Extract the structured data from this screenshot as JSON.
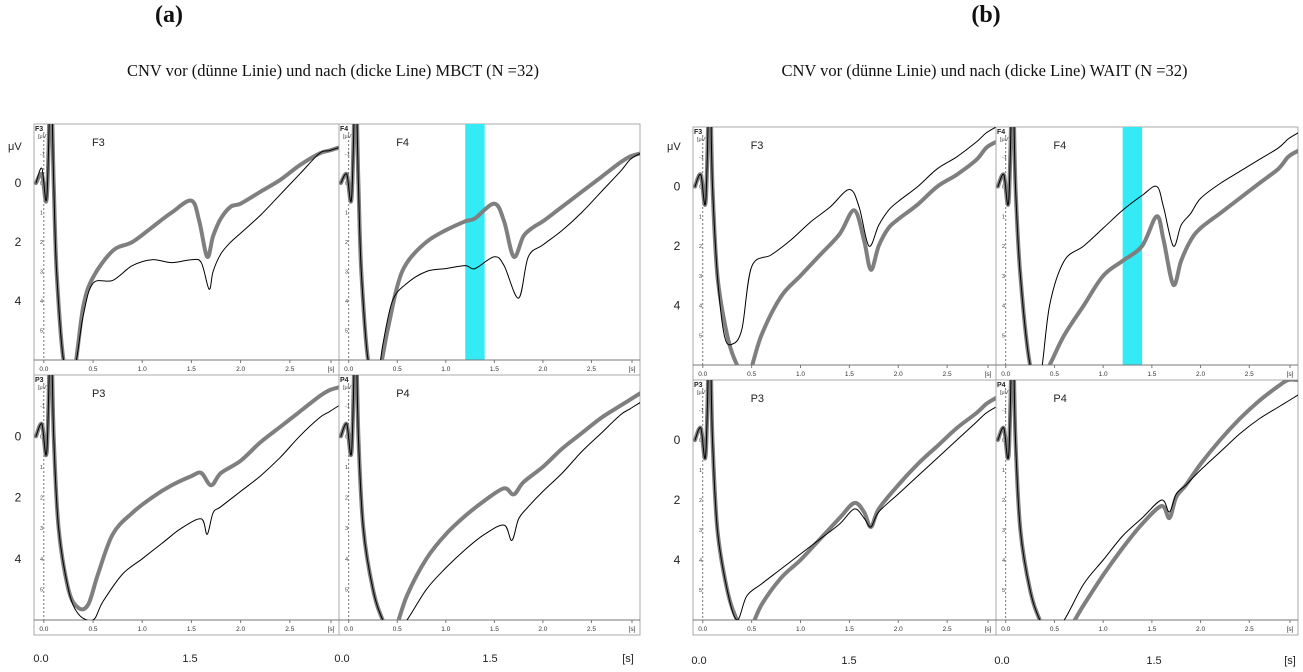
{
  "figure": {
    "panels": [
      {
        "id": "a",
        "letter": "(a)",
        "title": "CNV vor (dünne Linie) und nach (dicke Line) MBCT (N =32)",
        "unit_label": "μV",
        "y_outer_ticks": [
          "0",
          "2",
          "4",
          "0",
          "2",
          "4"
        ],
        "x_outer_ticks": [
          "0.0",
          "1.5",
          "0.0",
          "1.5",
          "[s]"
        ]
      },
      {
        "id": "b",
        "letter": "(b)",
        "title": "CNV vor (dünne Linie) und nach (dicke Line) WAIT (N =32)",
        "unit_label": "μV",
        "y_outer_ticks": [
          "0",
          "2",
          "4",
          "0",
          "2",
          "4"
        ],
        "x_outer_ticks": [
          "0.0",
          "1.5",
          "0.0",
          "1.5",
          "[s]"
        ]
      }
    ],
    "inner": {
      "corner_unit": "[μV]",
      "y_ticks": [
        "-1",
        "0",
        "1",
        "2",
        "3",
        "4",
        "5"
      ],
      "x_ticks": [
        "0.0",
        "0.5",
        "1.0",
        "1.5",
        "2.0",
        "2.5",
        "[s]"
      ]
    },
    "colors": {
      "thick": "#7f7f7f",
      "thin": "#000000",
      "highlight": "#33eaf5",
      "frame": "#a8a8a8"
    }
  },
  "chart_data": [
    {
      "type": "line",
      "panel": "a",
      "channel": "F3",
      "xlim": [
        -0.1,
        3.0
      ],
      "ylim": [
        6,
        -2
      ],
      "highlight": null,
      "series": [
        {
          "style": "thin",
          "x": [
            -0.08,
            -0.02,
            0.03,
            0.07,
            0.1,
            0.13,
            0.2,
            0.3,
            0.4,
            0.5,
            0.7,
            0.9,
            1.1,
            1.3,
            1.5,
            1.6,
            1.68,
            1.72,
            1.8,
            1.9,
            2.0,
            2.2,
            2.4,
            2.6,
            2.8,
            2.9,
            3.0
          ],
          "y": [
            0.0,
            -0.5,
            0.5,
            -3.5,
            0.0,
            3.0,
            6.0,
            6.5,
            4.5,
            3.4,
            3.3,
            2.8,
            2.6,
            2.7,
            2.6,
            2.7,
            3.6,
            3.0,
            2.4,
            2.0,
            1.7,
            1.1,
            0.4,
            -0.3,
            -1.0,
            -1.1,
            -1.2
          ]
        },
        {
          "style": "thick",
          "x": [
            -0.08,
            -0.02,
            0.03,
            0.07,
            0.1,
            0.13,
            0.2,
            0.3,
            0.4,
            0.5,
            0.7,
            0.9,
            1.1,
            1.3,
            1.5,
            1.58,
            1.66,
            1.72,
            1.8,
            1.9,
            2.0,
            2.2,
            2.4,
            2.6,
            2.8,
            2.9,
            3.0
          ],
          "y": [
            0.0,
            -0.3,
            0.5,
            -3.5,
            0.0,
            3.0,
            6.0,
            6.5,
            4.2,
            3.2,
            2.3,
            2.0,
            1.5,
            1.0,
            0.6,
            1.3,
            2.5,
            1.8,
            1.2,
            0.8,
            0.7,
            0.3,
            -0.1,
            -0.6,
            -1.0,
            -1.1,
            -1.2
          ]
        }
      ]
    },
    {
      "type": "line",
      "panel": "a",
      "channel": "F4",
      "xlim": [
        -0.1,
        3.0
      ],
      "ylim": [
        6,
        -2
      ],
      "highlight": [
        1.2,
        1.4
      ],
      "series": [
        {
          "style": "thin",
          "x": [
            -0.08,
            -0.02,
            0.03,
            0.07,
            0.1,
            0.13,
            0.2,
            0.3,
            0.35,
            0.45,
            0.6,
            0.8,
            1.0,
            1.2,
            1.3,
            1.5,
            1.6,
            1.75,
            1.85,
            2.0,
            2.2,
            2.4,
            2.6,
            2.8,
            2.9,
            3.0
          ],
          "y": [
            0.0,
            -0.3,
            0.5,
            -3.5,
            0.0,
            3.0,
            6.0,
            6.5,
            5.5,
            4.0,
            3.4,
            3.0,
            2.9,
            2.8,
            2.9,
            2.5,
            2.8,
            3.9,
            2.5,
            2.1,
            1.6,
            1.0,
            0.3,
            -0.4,
            -0.8,
            -1.0
          ]
        },
        {
          "style": "thick",
          "x": [
            -0.08,
            -0.02,
            0.03,
            0.07,
            0.1,
            0.13,
            0.2,
            0.3,
            0.4,
            0.5,
            0.6,
            0.8,
            1.0,
            1.2,
            1.3,
            1.5,
            1.6,
            1.7,
            1.8,
            1.9,
            2.0,
            2.2,
            2.4,
            2.6,
            2.8,
            2.9,
            3.0
          ],
          "y": [
            0.0,
            -0.3,
            0.5,
            -3.5,
            0.0,
            3.0,
            6.0,
            6.5,
            5.0,
            3.5,
            2.7,
            2.0,
            1.6,
            1.3,
            1.2,
            0.7,
            1.3,
            2.5,
            1.8,
            1.5,
            1.3,
            0.8,
            0.3,
            -0.2,
            -0.7,
            -0.9,
            -1.0
          ]
        }
      ]
    },
    {
      "type": "line",
      "panel": "a",
      "channel": "P3",
      "xlim": [
        -0.1,
        3.0
      ],
      "ylim": [
        6,
        -2
      ],
      "highlight": null,
      "series": [
        {
          "style": "thin",
          "x": [
            -0.08,
            -0.02,
            0.03,
            0.07,
            0.1,
            0.15,
            0.25,
            0.35,
            0.5,
            0.6,
            0.8,
            1.0,
            1.2,
            1.4,
            1.6,
            1.66,
            1.72,
            1.8,
            2.0,
            2.2,
            2.4,
            2.6,
            2.8,
            2.9,
            3.0
          ],
          "y": [
            0.0,
            -0.4,
            0.5,
            -3.5,
            0.0,
            3.0,
            5.0,
            5.8,
            6.0,
            5.4,
            4.5,
            4.0,
            3.5,
            3.0,
            2.7,
            3.2,
            2.5,
            2.3,
            1.8,
            1.3,
            0.7,
            0.0,
            -0.6,
            -0.8,
            -1.0
          ]
        },
        {
          "style": "thick",
          "x": [
            -0.08,
            -0.02,
            0.03,
            0.07,
            0.1,
            0.15,
            0.25,
            0.35,
            0.45,
            0.55,
            0.7,
            0.9,
            1.1,
            1.3,
            1.5,
            1.6,
            1.7,
            1.8,
            2.0,
            2.2,
            2.4,
            2.6,
            2.8,
            2.9,
            3.0
          ],
          "y": [
            0.0,
            -0.4,
            0.5,
            -3.5,
            0.0,
            3.0,
            5.0,
            5.6,
            5.5,
            4.5,
            3.2,
            2.5,
            2.0,
            1.6,
            1.3,
            1.2,
            1.6,
            1.2,
            0.8,
            0.2,
            -0.3,
            -0.8,
            -1.3,
            -1.5,
            -1.6
          ]
        }
      ]
    },
    {
      "type": "line",
      "panel": "a",
      "channel": "P4",
      "xlim": [
        -0.1,
        3.0
      ],
      "ylim": [
        6,
        -2
      ],
      "highlight": null,
      "series": [
        {
          "style": "thin",
          "x": [
            -0.08,
            -0.02,
            0.03,
            0.07,
            0.1,
            0.15,
            0.25,
            0.35,
            0.45,
            0.6,
            0.8,
            1.0,
            1.2,
            1.4,
            1.6,
            1.68,
            1.75,
            1.85,
            2.0,
            2.2,
            2.4,
            2.6,
            2.8,
            2.9,
            3.0
          ],
          "y": [
            0.0,
            -0.4,
            0.5,
            -3.5,
            0.0,
            3.0,
            5.0,
            6.0,
            6.5,
            6.0,
            5.0,
            4.3,
            3.7,
            3.2,
            2.9,
            3.4,
            2.7,
            2.3,
            1.8,
            1.2,
            0.5,
            -0.1,
            -0.7,
            -0.9,
            -1.1
          ]
        },
        {
          "style": "thick",
          "x": [
            -0.08,
            -0.02,
            0.03,
            0.07,
            0.1,
            0.15,
            0.25,
            0.35,
            0.45,
            0.6,
            0.8,
            1.0,
            1.2,
            1.4,
            1.6,
            1.7,
            1.8,
            2.0,
            2.2,
            2.4,
            2.6,
            2.8,
            2.9,
            3.0
          ],
          "y": [
            0.0,
            -0.4,
            0.5,
            -3.5,
            0.0,
            3.0,
            5.0,
            6.0,
            6.5,
            5.2,
            4.0,
            3.2,
            2.6,
            2.1,
            1.7,
            1.9,
            1.5,
            1.0,
            0.4,
            -0.1,
            -0.6,
            -1.0,
            -1.2,
            -1.4
          ]
        }
      ]
    },
    {
      "type": "line",
      "panel": "b",
      "channel": "F3",
      "xlim": [
        -0.1,
        3.0
      ],
      "ylim": [
        6,
        -2
      ],
      "highlight": null,
      "series": [
        {
          "style": "thin",
          "x": [
            -0.08,
            -0.02,
            0.03,
            0.07,
            0.1,
            0.15,
            0.22,
            0.3,
            0.4,
            0.5,
            0.7,
            0.9,
            1.1,
            1.3,
            1.5,
            1.6,
            1.7,
            1.8,
            1.9,
            2.0,
            2.2,
            2.4,
            2.6,
            2.8,
            2.9,
            3.0
          ],
          "y": [
            0.0,
            -0.4,
            0.5,
            -3.5,
            0.0,
            3.0,
            5.0,
            5.3,
            4.8,
            2.7,
            2.3,
            1.8,
            1.2,
            0.7,
            0.1,
            0.7,
            2.0,
            1.3,
            0.8,
            0.5,
            0.0,
            -0.6,
            -1.0,
            -1.5,
            -1.8,
            -2.0
          ]
        },
        {
          "style": "thick",
          "x": [
            -0.08,
            -0.02,
            0.03,
            0.07,
            0.1,
            0.15,
            0.25,
            0.35,
            0.45,
            0.6,
            0.8,
            1.0,
            1.2,
            1.4,
            1.55,
            1.65,
            1.72,
            1.8,
            1.9,
            2.0,
            2.2,
            2.4,
            2.6,
            2.8,
            2.9,
            3.0
          ],
          "y": [
            0.0,
            -0.4,
            0.5,
            -3.5,
            0.0,
            3.0,
            5.0,
            6.0,
            6.5,
            5.0,
            3.7,
            3.0,
            2.3,
            1.6,
            0.8,
            1.8,
            2.8,
            2.0,
            1.4,
            1.1,
            0.6,
            0.0,
            -0.4,
            -0.9,
            -1.3,
            -1.5
          ]
        }
      ]
    },
    {
      "type": "line",
      "panel": "b",
      "channel": "F4",
      "xlim": [
        -0.1,
        3.0
      ],
      "ylim": [
        6,
        -2
      ],
      "highlight": [
        1.2,
        1.4
      ],
      "series": [
        {
          "style": "thin",
          "x": [
            -0.08,
            -0.02,
            0.03,
            0.07,
            0.1,
            0.15,
            0.25,
            0.35,
            0.45,
            0.6,
            0.8,
            1.0,
            1.2,
            1.4,
            1.55,
            1.62,
            1.72,
            1.8,
            1.9,
            2.0,
            2.2,
            2.4,
            2.6,
            2.8,
            2.9,
            3.0
          ],
          "y": [
            0.0,
            -0.4,
            0.5,
            -3.5,
            0.0,
            3.0,
            6.0,
            6.5,
            4.0,
            2.5,
            2.0,
            1.4,
            0.8,
            0.3,
            0.0,
            0.7,
            2.0,
            1.3,
            0.9,
            0.4,
            -0.1,
            -0.5,
            -0.9,
            -1.3,
            -1.6,
            -1.8
          ]
        },
        {
          "style": "thick",
          "x": [
            -0.08,
            -0.02,
            0.03,
            0.07,
            0.1,
            0.15,
            0.25,
            0.35,
            0.45,
            0.6,
            0.8,
            1.0,
            1.2,
            1.4,
            1.55,
            1.62,
            1.72,
            1.8,
            1.9,
            2.0,
            2.2,
            2.4,
            2.6,
            2.8,
            2.9,
            3.0
          ],
          "y": [
            0.0,
            -0.4,
            0.5,
            -3.5,
            0.0,
            3.0,
            6.0,
            6.5,
            6.0,
            5.0,
            4.0,
            3.0,
            2.5,
            2.0,
            1.0,
            1.8,
            3.3,
            2.5,
            1.8,
            1.4,
            0.9,
            0.4,
            -0.1,
            -0.6,
            -1.0,
            -1.2
          ]
        }
      ]
    },
    {
      "type": "line",
      "panel": "b",
      "channel": "P3",
      "xlim": [
        -0.1,
        3.0
      ],
      "ylim": [
        6,
        -2
      ],
      "highlight": null,
      "series": [
        {
          "style": "thin",
          "x": [
            -0.08,
            -0.02,
            0.03,
            0.07,
            0.1,
            0.15,
            0.25,
            0.35,
            0.45,
            0.6,
            0.8,
            1.0,
            1.2,
            1.4,
            1.55,
            1.65,
            1.72,
            1.8,
            2.0,
            2.2,
            2.4,
            2.6,
            2.8,
            2.9,
            3.0
          ],
          "y": [
            0.0,
            -0.4,
            0.5,
            -3.5,
            0.0,
            3.0,
            5.0,
            6.0,
            5.2,
            4.8,
            4.3,
            3.8,
            3.3,
            2.8,
            2.3,
            2.6,
            2.9,
            2.4,
            1.8,
            1.2,
            0.6,
            0.0,
            -0.6,
            -0.9,
            -1.1
          ]
        },
        {
          "style": "thick",
          "x": [
            -0.08,
            -0.02,
            0.03,
            0.07,
            0.1,
            0.15,
            0.25,
            0.35,
            0.45,
            0.6,
            0.8,
            1.0,
            1.2,
            1.4,
            1.55,
            1.65,
            1.72,
            1.8,
            2.0,
            2.2,
            2.4,
            2.6,
            2.8,
            2.9,
            3.0
          ],
          "y": [
            0.0,
            -0.4,
            0.5,
            -3.5,
            0.0,
            3.0,
            5.0,
            6.0,
            6.5,
            5.5,
            4.6,
            4.0,
            3.3,
            2.6,
            2.1,
            2.4,
            2.9,
            2.3,
            1.5,
            0.8,
            0.2,
            -0.4,
            -0.9,
            -1.2,
            -1.4
          ]
        }
      ]
    },
    {
      "type": "line",
      "panel": "b",
      "channel": "P4",
      "xlim": [
        -0.1,
        3.0
      ],
      "ylim": [
        6,
        -2
      ],
      "highlight": null,
      "series": [
        {
          "style": "thin",
          "x": [
            -0.08,
            -0.02,
            0.03,
            0.07,
            0.1,
            0.15,
            0.25,
            0.35,
            0.45,
            0.6,
            0.8,
            1.0,
            1.2,
            1.4,
            1.6,
            1.68,
            1.75,
            1.85,
            2.0,
            2.2,
            2.4,
            2.6,
            2.8,
            2.9,
            3.0
          ],
          "y": [
            0.0,
            -0.4,
            0.5,
            -3.5,
            0.0,
            3.0,
            5.0,
            6.0,
            6.5,
            6.0,
            4.8,
            4.0,
            3.2,
            2.6,
            2.0,
            2.4,
            1.8,
            1.5,
            1.0,
            0.4,
            -0.2,
            -0.7,
            -1.1,
            -1.3,
            -1.5
          ]
        },
        {
          "style": "thick",
          "x": [
            -0.08,
            -0.02,
            0.03,
            0.07,
            0.1,
            0.15,
            0.25,
            0.35,
            0.45,
            0.6,
            0.8,
            1.0,
            1.2,
            1.4,
            1.6,
            1.68,
            1.75,
            1.85,
            2.0,
            2.2,
            2.4,
            2.6,
            2.8,
            2.9,
            3.0
          ],
          "y": [
            0.0,
            -0.4,
            0.5,
            -3.5,
            0.0,
            3.0,
            5.0,
            6.0,
            6.5,
            6.5,
            5.5,
            4.5,
            3.6,
            2.8,
            2.2,
            2.6,
            1.9,
            1.5,
            0.8,
            0.0,
            -0.7,
            -1.3,
            -1.8,
            -2.0,
            -2.0
          ]
        }
      ]
    }
  ]
}
